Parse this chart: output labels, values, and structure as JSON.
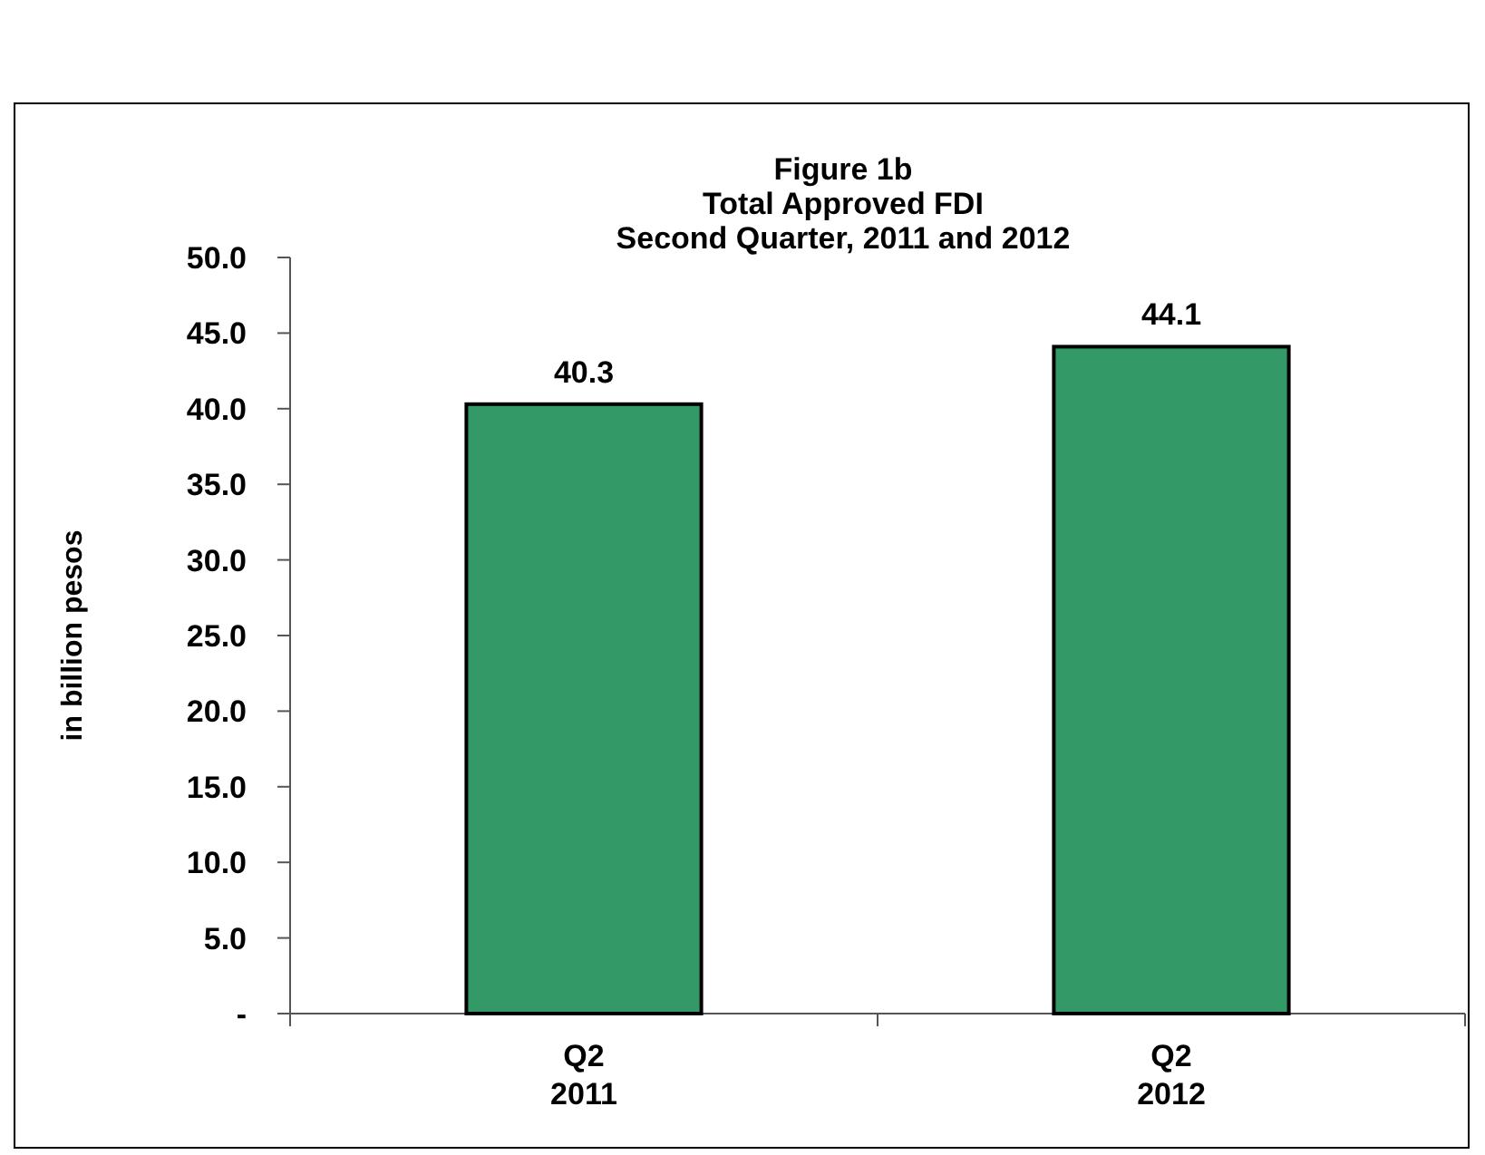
{
  "chart_data": {
    "type": "bar",
    "title": "Figure 1b\nTotal Approved FDI\nSecond Quarter, 2011 and 2012",
    "ylabel": "in billion pesos",
    "categories": [
      "Q2\n2011",
      "Q2\n2012"
    ],
    "values": [
      40.3,
      44.1
    ],
    "colors": [
      "#339966",
      "#339966"
    ],
    "ylim": [
      0,
      50
    ],
    "yticks": [
      {
        "value": 0,
        "label": "-"
      },
      {
        "value": 5,
        "label": "5.0"
      },
      {
        "value": 10,
        "label": "10.0"
      },
      {
        "value": 15,
        "label": "15.0"
      },
      {
        "value": 20,
        "label": "20.0"
      },
      {
        "value": 25,
        "label": "25.0"
      },
      {
        "value": 30,
        "label": "30.0"
      },
      {
        "value": 35,
        "label": "35.0"
      },
      {
        "value": 40,
        "label": "40.0"
      },
      {
        "value": 45,
        "label": "45.0"
      },
      {
        "value": 50,
        "label": "50.0"
      }
    ],
    "data_labels": true,
    "grid": false
  }
}
